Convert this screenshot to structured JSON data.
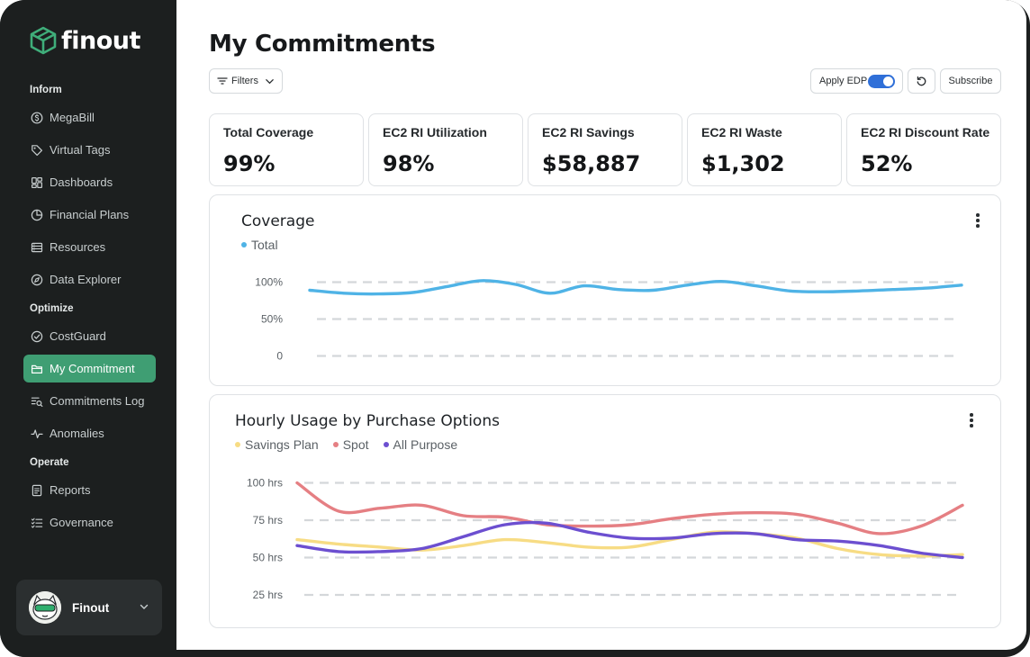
{
  "brand": {
    "name": "finout",
    "accent": "#3f9e73"
  },
  "sidebar": {
    "sections": [
      {
        "label": "Inform",
        "items": [
          {
            "label": "MegaBill",
            "icon": "dollar-circle-icon"
          },
          {
            "label": "Virtual Tags",
            "icon": "tag-icon"
          },
          {
            "label": "Dashboards",
            "icon": "dashboard-grid-icon"
          },
          {
            "label": "Financial Plans",
            "icon": "pie-chart-icon"
          },
          {
            "label": "Resources",
            "icon": "server-icon"
          },
          {
            "label": "Data Explorer",
            "icon": "compass-icon"
          }
        ]
      },
      {
        "label": "Optimize",
        "items": [
          {
            "label": "CostGuard",
            "icon": "shield-check-icon"
          },
          {
            "label": "My Commitment",
            "icon": "folder-icon",
            "active": true
          },
          {
            "label": "Commitments Log",
            "icon": "list-search-icon"
          },
          {
            "label": "Anomalies",
            "icon": "activity-icon"
          }
        ]
      },
      {
        "label": "Operate",
        "items": [
          {
            "label": "Reports",
            "icon": "report-icon"
          },
          {
            "label": "Governance",
            "icon": "checklist-icon"
          }
        ]
      }
    ],
    "user": {
      "name": "Finout"
    }
  },
  "header": {
    "title": "My Commitments",
    "filters_label": "Filters",
    "apply_edp_label": "Apply EDP",
    "apply_edp_on": true,
    "subscribe_label": "Subscribe"
  },
  "kpis": [
    {
      "label": "Total Coverage",
      "value": "99%"
    },
    {
      "label": "EC2 RI Utilization",
      "value": "98%"
    },
    {
      "label": "EC2 RI Savings",
      "value": "$58,887"
    },
    {
      "label": "EC2 RI Waste",
      "value": "$1,302"
    },
    {
      "label": "EC2 RI Discount Rate",
      "value": "52%"
    }
  ],
  "chart_data": [
    {
      "type": "line",
      "title": "Coverage",
      "legend_position": "top-left",
      "grid": true,
      "y_ticks": [
        "100%",
        "50%",
        "0"
      ],
      "y_tick_values": [
        100,
        50,
        0
      ],
      "ylim": [
        0,
        100
      ],
      "series": [
        {
          "name": "Total",
          "color": "#4fb3e6",
          "values": [
            89,
            85,
            84,
            86,
            94,
            102,
            97,
            85,
            95,
            90,
            89,
            96,
            101,
            95,
            88,
            87,
            88,
            90,
            92,
            96
          ]
        }
      ]
    },
    {
      "type": "line",
      "title": "Hourly Usage by Purchase Options",
      "legend_position": "top-left",
      "grid": true,
      "y_ticks": [
        "100 hrs",
        "75 hrs",
        "50 hrs",
        "25 hrs"
      ],
      "y_tick_values": [
        100,
        75,
        50,
        25
      ],
      "ylim": [
        15,
        100
      ],
      "series": [
        {
          "name": "Savings Plan",
          "color": "#f7dc84",
          "values": [
            62,
            59,
            57,
            55,
            58,
            62,
            60,
            57,
            57,
            62,
            67,
            66,
            63,
            56,
            52,
            51,
            52
          ]
        },
        {
          "name": "Spot",
          "color": "#e57f83",
          "values": [
            100,
            81,
            83,
            85,
            78,
            77,
            72,
            71,
            72,
            76,
            79,
            80,
            79,
            73,
            66,
            71,
            85
          ]
        },
        {
          "name": "All Purpose",
          "color": "#6c4fd0",
          "values": [
            58,
            54,
            54,
            56,
            64,
            72,
            73,
            67,
            63,
            63,
            66,
            66,
            62,
            61,
            58,
            53,
            50
          ]
        }
      ]
    }
  ]
}
